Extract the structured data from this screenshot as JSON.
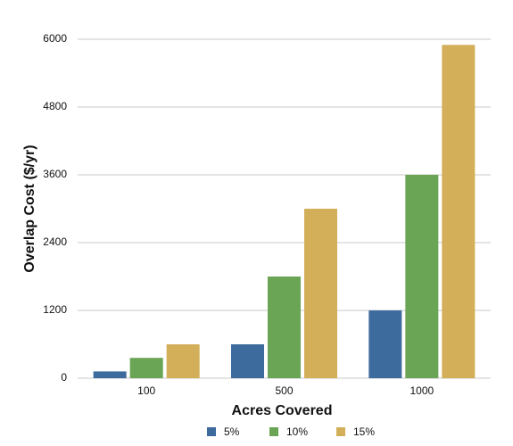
{
  "chart_data": {
    "type": "bar",
    "x_label": "Acres Covered",
    "y_label": "Overlap Cost ($/yr)",
    "categories": [
      "100",
      "500",
      "1000"
    ],
    "series": [
      {
        "name": "5%",
        "color": "#3d6b9e",
        "values": [
          120,
          600,
          1200
        ]
      },
      {
        "name": "10%",
        "color": "#6aa556",
        "values": [
          360,
          1800,
          3600
        ]
      },
      {
        "name": "15%",
        "color": "#d4af5a",
        "values": [
          600,
          3000,
          5900
        ]
      }
    ],
    "ylim": [
      0,
      6000
    ],
    "yticks": [
      0,
      1200,
      2400,
      3600,
      4800,
      6000
    ],
    "grid": true,
    "legend": "bottom"
  }
}
